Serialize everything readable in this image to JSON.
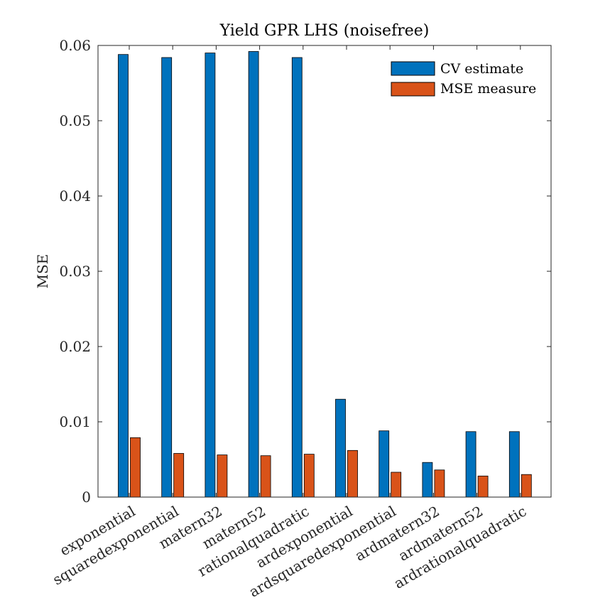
{
  "chart_data": {
    "type": "bar",
    "title": "Yield GPR LHS (noisefree)",
    "xlabel": "",
    "ylabel": "MSE",
    "ylim": [
      0,
      0.06
    ],
    "yticks": [
      "0",
      "0.01",
      "0.02",
      "0.03",
      "0.04",
      "0.05",
      "0.06"
    ],
    "ytick_values": [
      0,
      0.01,
      0.02,
      0.03,
      0.04,
      0.05,
      0.06
    ],
    "categories": [
      "exponential",
      "squaredexponential",
      "matern32",
      "matern52",
      "rationalquadratic",
      "ardexponential",
      "ardsquaredexponential",
      "ardmatern32",
      "ardmatern52",
      "ardrationalquadratic"
    ],
    "series": [
      {
        "name": "CV estimate",
        "color": "#0072BD",
        "values": [
          0.0588,
          0.0584,
          0.059,
          0.0592,
          0.0584,
          0.013,
          0.0088,
          0.0046,
          0.0087,
          0.0087
        ]
      },
      {
        "name": "MSE measure",
        "color": "#D95319",
        "values": [
          0.0079,
          0.0058,
          0.0056,
          0.0055,
          0.0057,
          0.0062,
          0.0033,
          0.0036,
          0.0028,
          0.003
        ]
      }
    ],
    "grid": false,
    "legend_position": "top-right"
  }
}
